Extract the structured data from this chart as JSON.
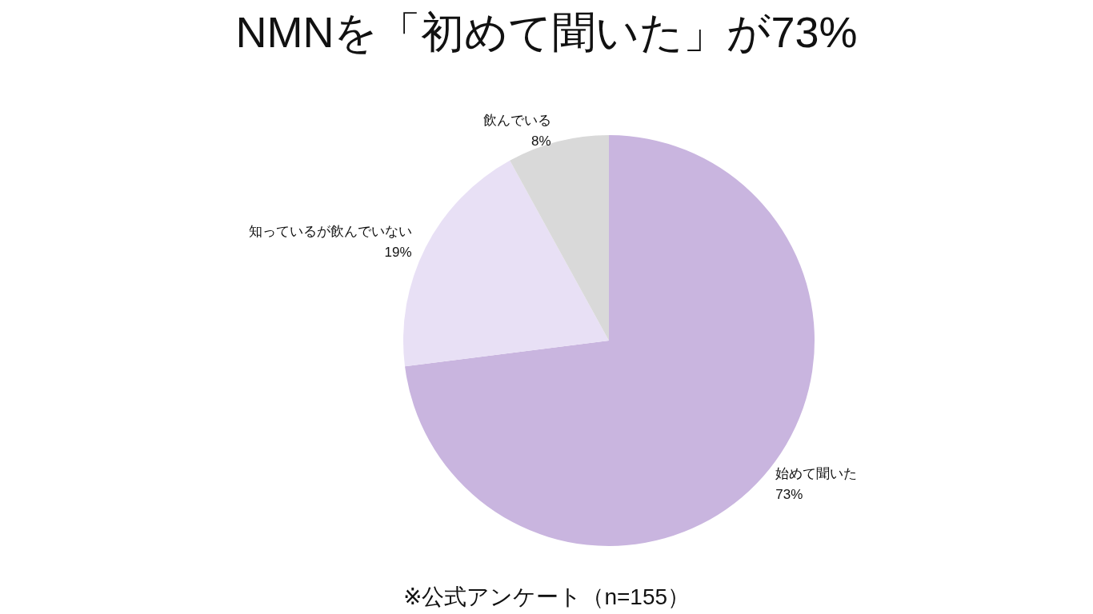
{
  "chart_data": {
    "type": "pie",
    "title": "NMNを「初めて聞いた」が73%",
    "categories": [
      "始めて聞いた",
      "知っているが飲んでいない",
      "飲んでいる"
    ],
    "values": [
      73,
      19,
      8
    ],
    "value_labels": [
      "73%",
      "19%",
      "8%"
    ],
    "colors": [
      "#c9b5df",
      "#e8e0f5",
      "#d9d9d9"
    ],
    "legend": false,
    "annotations": [
      "※公式アンケート（n=155）"
    ]
  }
}
